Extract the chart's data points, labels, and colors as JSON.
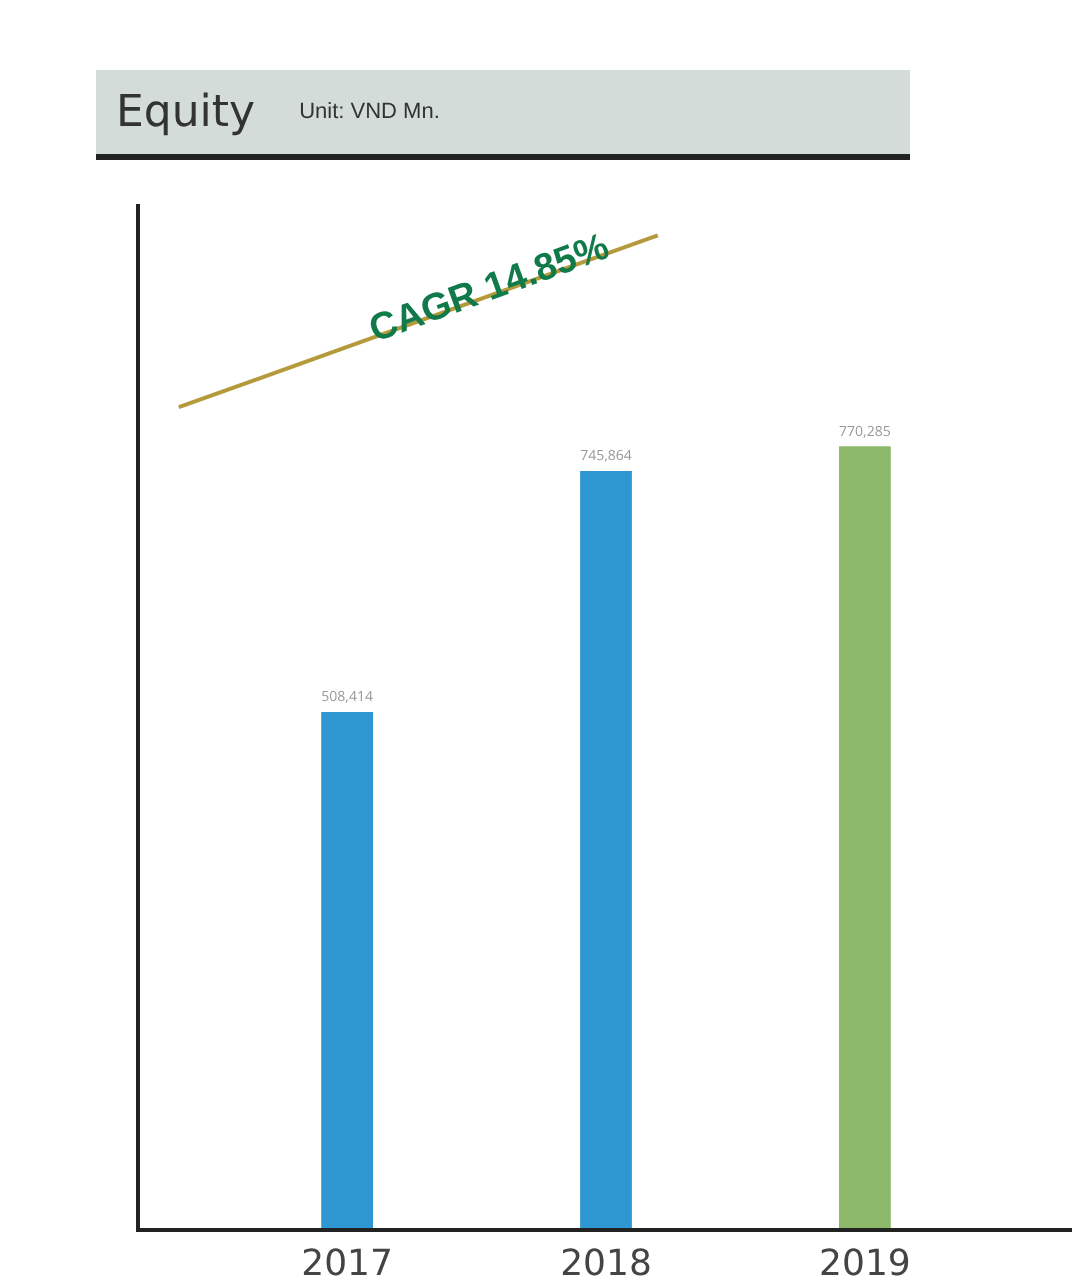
{
  "chart_data": {
    "type": "bar",
    "title": "Equity",
    "subtitle": "Unit: VND Mn.",
    "categories": [
      "2017",
      "2018",
      "2019"
    ],
    "values": [
      508414,
      745864,
      770285
    ],
    "colors": [
      "#2e97d1",
      "#2e97d1",
      "#8dba6a"
    ],
    "value_labels": [
      "508,414",
      "745,864",
      "770,285"
    ],
    "annotations": [
      "CAGR 14.85%"
    ]
  }
}
